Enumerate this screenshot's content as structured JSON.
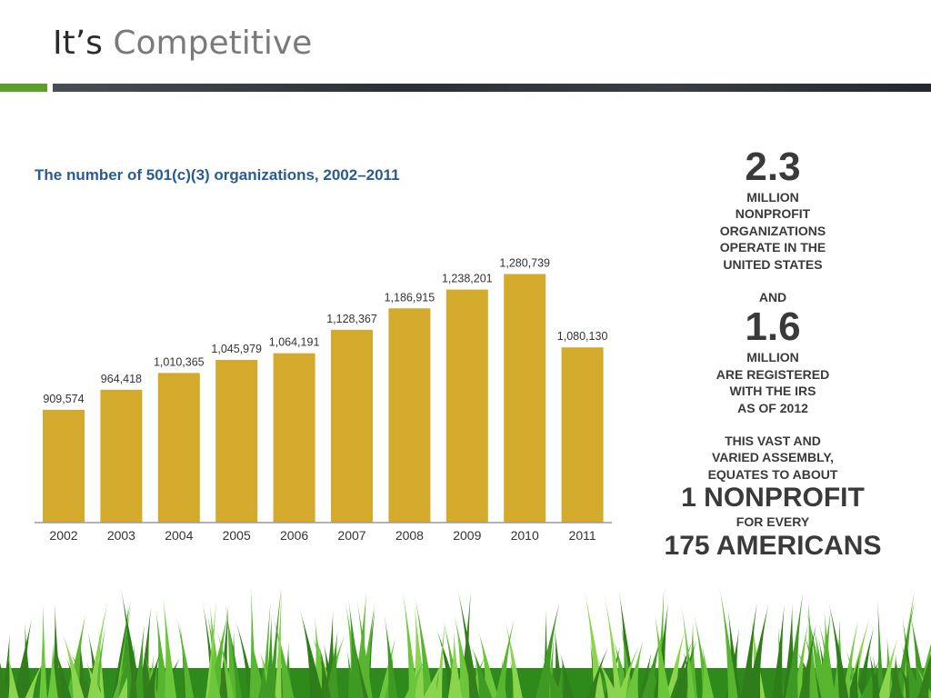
{
  "slide": {
    "title_part1": "It’s",
    "title_part2": "Competitive"
  },
  "colors": {
    "bar": "#d4aa2c",
    "accent_green": "#5aa02c",
    "chart_title": "#2a5b94",
    "grass": "#4caf2a"
  },
  "chart_data": {
    "type": "bar",
    "title": "The number of 501(c)(3) organizations, 2002–2011",
    "categories": [
      "2002",
      "2003",
      "2004",
      "2005",
      "2006",
      "2007",
      "2008",
      "2009",
      "2010",
      "2011"
    ],
    "values": [
      909574,
      964418,
      1010365,
      1045979,
      1064191,
      1128367,
      1186915,
      1238201,
      1280739,
      1080130
    ],
    "value_labels": [
      "909,574",
      "964,418",
      "1,010,365",
      "1,045,979",
      "1,064,191",
      "1,128,367",
      "1,186,915",
      "1,238,201",
      "1,280,739",
      "1,080,130"
    ],
    "xlabel": "",
    "ylabel": "",
    "grid": false
  },
  "side_panel": {
    "stat1_number": "2.3",
    "stat1_text": "MILLION\nNONPROFIT\nORGANIZATIONS\nOPERATE IN THE\nUNITED STATES",
    "and_text": "AND",
    "stat2_number": "1.6",
    "stat2_text": "MILLION\nARE REGISTERED\nWITH THE IRS\nAS OF 2012",
    "assembly_text": "THIS VAST AND\nVARIED ASSEMBLY,\nEQUATES TO ABOUT",
    "ratio_line1": "1 NONPROFIT",
    "ratio_middle": "FOR EVERY",
    "ratio_line2": "175 AMERICANS"
  }
}
